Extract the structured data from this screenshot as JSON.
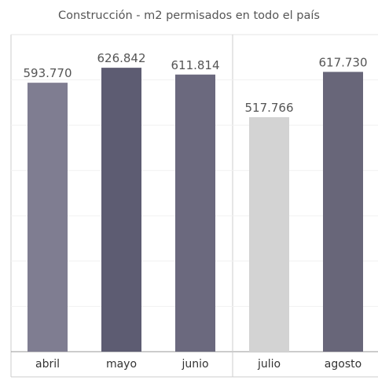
{
  "chart_data": {
    "type": "bar",
    "title": "Construcción - m2 permisados en todo el país",
    "xlabel": "",
    "ylabel": "",
    "ylim": [
      0,
      700000
    ],
    "grid": true,
    "legend": "none",
    "categories": [
      "abril",
      "mayo",
      "junio",
      "julio",
      "agosto"
    ],
    "values": [
      593770,
      626842,
      611814,
      517766,
      617730
    ],
    "value_labels": [
      "593.770",
      "626.842",
      "611.814",
      "517.766",
      "617.730"
    ],
    "colors": [
      "#7f7d91",
      "#5d5c72",
      "#6b697e",
      "#d3d3d3",
      "#686679"
    ],
    "groups": [
      [
        "abril",
        "mayo",
        "junio"
      ],
      [
        "julio",
        "agosto"
      ]
    ]
  }
}
